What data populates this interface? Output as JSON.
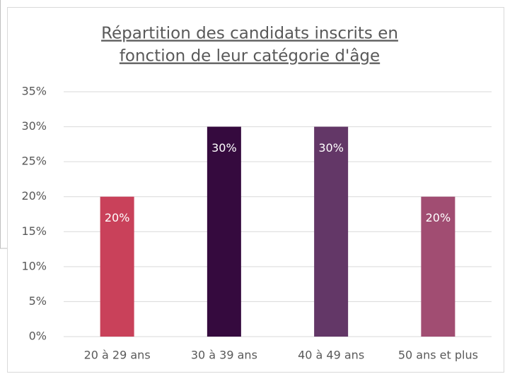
{
  "chart_data": {
    "type": "bar",
    "title": [
      "Répartition des candidats inscrits en",
      "fonction de leur catégorie d'âge"
    ],
    "categories": [
      "20 à 29 ans",
      "30 à 39 ans",
      "40 à 49 ans",
      "50 ans et plus"
    ],
    "values": [
      20,
      30,
      30,
      20
    ],
    "value_labels": [
      "20%",
      "30%",
      "30%",
      "20%"
    ],
    "colors": [
      "#c9415a",
      "#350a3e",
      "#633767",
      "#a14d72"
    ],
    "ylim": [
      0,
      35
    ],
    "yticks": [
      {
        "value": 0,
        "label": "0%"
      },
      {
        "value": 5,
        "label": "5%"
      },
      {
        "value": 10,
        "label": "10%"
      },
      {
        "value": 15,
        "label": "15%"
      },
      {
        "value": 20,
        "label": "20%"
      },
      {
        "value": 25,
        "label": "25%"
      },
      {
        "value": 30,
        "label": "30%"
      },
      {
        "value": 35,
        "label": "35%"
      }
    ],
    "grid": true
  }
}
